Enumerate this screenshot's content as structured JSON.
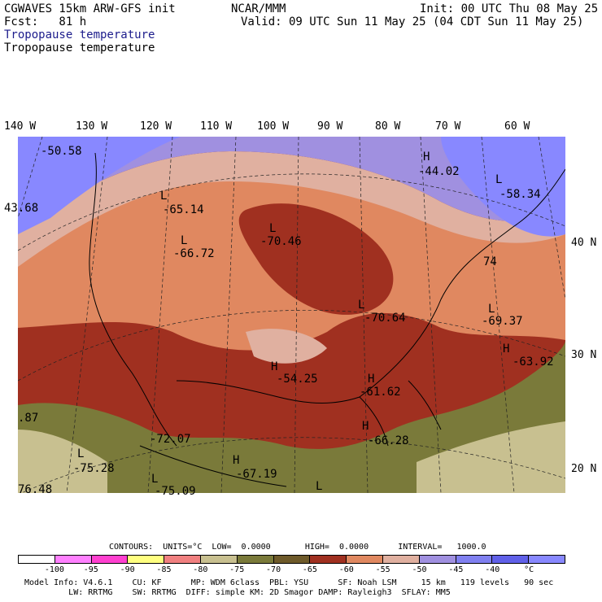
{
  "header": {
    "left1": "CGWAVES 15km ARW-GFS init",
    "left2": "Fcst:   81 h",
    "center": "NCAR/MMM",
    "init": "Init: 00 UTC Thu 08 May 25",
    "valid": "Valid: 09 UTC Sun 11 May 25 (04 CDT Sun 11 May 25)",
    "field1": "Tropopause temperature",
    "field2": "Tropopause temperature"
  },
  "axes": {
    "lon_labels": [
      "140 W",
      "130 W",
      "120 W",
      "110 W",
      "100 W",
      "90 W",
      "80 W",
      "70 W",
      "60 W"
    ],
    "lat_labels": [
      "40 N",
      "30 N",
      "20 N"
    ]
  },
  "map_labels": [
    {
      "text": "-50.58"
    },
    {
      "text": "43.68"
    },
    {
      "text": "L"
    },
    {
      "text": "-65.14"
    },
    {
      "text": "L"
    },
    {
      "text": "-66.72"
    },
    {
      "text": "L"
    },
    {
      "text": "-70.46"
    },
    {
      "text": "H"
    },
    {
      "text": "-44.02"
    },
    {
      "text": "L"
    },
    {
      "text": "-58.34"
    },
    {
      "text": "74"
    },
    {
      "text": "L"
    },
    {
      "text": "-69.37"
    },
    {
      "text": "L"
    },
    {
      "text": "-70.64"
    },
    {
      "text": "H"
    },
    {
      "text": "-63.92"
    },
    {
      "text": "H"
    },
    {
      "text": "-54.25"
    },
    {
      "text": "H"
    },
    {
      "text": "-61.62"
    },
    {
      "text": ".87"
    },
    {
      "text": "-72.07"
    },
    {
      "text": "H"
    },
    {
      "text": "-66.28"
    },
    {
      "text": "L"
    },
    {
      "text": "-75.28"
    },
    {
      "text": "H"
    },
    {
      "text": "-67.19"
    },
    {
      "text": "L"
    },
    {
      "text": "-75.09"
    },
    {
      "text": "76.48"
    },
    {
      "text": "L"
    }
  ],
  "contours_line": "CONTOURS:  UNITS=°C  LOW=  0.0000       HIGH=  0.0000      INTERVAL=   1000.0",
  "colorbar": {
    "colors": [
      "#ffffff",
      "#ff80ff",
      "#ff40d0",
      "#ffff80",
      "#f08080",
      "#c8c090",
      "#7a7a3a",
      "#6e5a2a",
      "#a03020",
      "#e08860",
      "#e0b0a0",
      "#a090e0",
      "#8080f0",
      "#6060e8",
      "#8888ff"
    ],
    "ticks": [
      "-100",
      "-95",
      "-90",
      "-85",
      "-80",
      "-75",
      "-70",
      "-65",
      "-60",
      "-55",
      "-50",
      "-45",
      "-40",
      "°C"
    ]
  },
  "footer": {
    "line1": "Model Info: V4.6.1    CU: KF      MP: WDM 6class  PBL: YSU      SF: Noah LSM     15 km   119 levels   90 sec",
    "line2": "         LW: RRTMG    SW: RRTMG  DIFF: simple KM: 2D Smagor DAMP: Rayleigh3  SFLAY: MM5"
  }
}
